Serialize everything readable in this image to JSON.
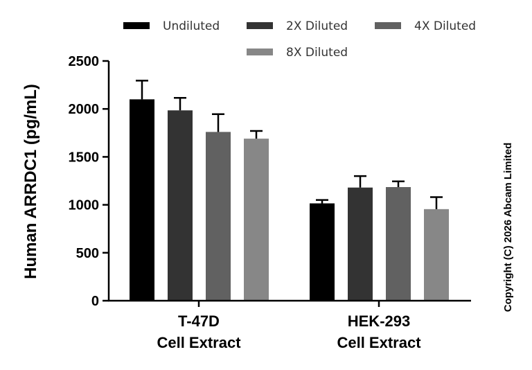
{
  "chart_data": {
    "type": "bar",
    "categories": [
      {
        "line1": "T-47D",
        "line2": "Cell Extract"
      },
      {
        "line1": "HEK-293",
        "line2": "Cell Extract"
      }
    ],
    "series": [
      {
        "name": "Undiluted",
        "color": "#000000",
        "values": [
          2100,
          1015
        ],
        "errors": [
          195,
          35
        ]
      },
      {
        "name": "2X Diluted",
        "color": "#333333",
        "values": [
          1985,
          1180
        ],
        "errors": [
          130,
          120
        ]
      },
      {
        "name": "4X Diluted",
        "color": "#616161",
        "values": [
          1760,
          1185
        ],
        "errors": [
          185,
          60
        ]
      },
      {
        "name": "8X Diluted",
        "color": "#878787",
        "values": [
          1690,
          955
        ],
        "errors": [
          80,
          125
        ]
      }
    ],
    "ylabel": "Human ARRDC1 (pg/mL)",
    "xlabel": "",
    "ylim": [
      0,
      2500
    ],
    "yticks": [
      0,
      500,
      1000,
      1500,
      2000,
      2500
    ],
    "grid": false,
    "legend_position": "top",
    "error_bars": true
  },
  "copyright": "Copyright (C) 2026 Abcam Limited"
}
